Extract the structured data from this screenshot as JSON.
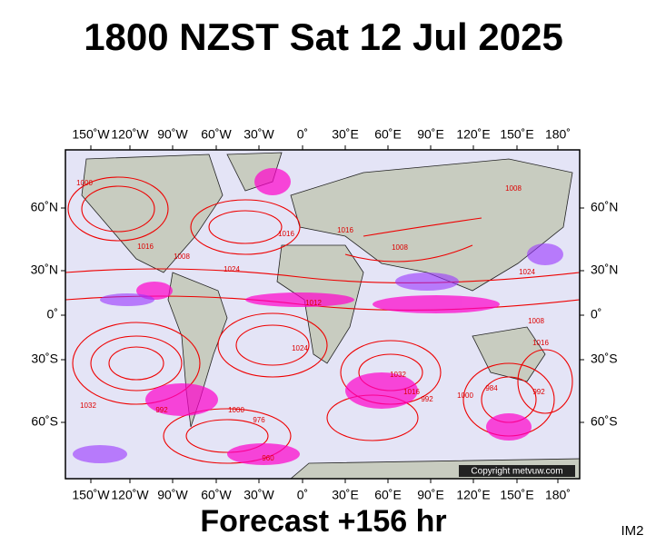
{
  "header": {
    "title": "1800 NZST Sat 12 Jul 2025"
  },
  "map": {
    "lon_labels": [
      "150˚W",
      "120˚W",
      "90˚W",
      "60˚W",
      "30˚W",
      "0˚",
      "30˚E",
      "60˚E",
      "90˚E",
      "120˚E",
      "150˚E",
      "180˚"
    ],
    "lat_labels": [
      "60˚N",
      "30˚N",
      "0˚",
      "30˚S",
      "60˚S"
    ],
    "isobar_labels": [
      1000,
      1016,
      1024,
      1008,
      1016,
      1008,
      1016,
      1024,
      1012,
      1024,
      1032,
      992,
      976,
      960,
      1000,
      1032,
      1016,
      992,
      1000,
      984,
      992,
      1008,
      1016,
      1008
    ],
    "copyright": "Copyright metvuw.com"
  },
  "footer": {
    "forecast": "Forecast +156 hr",
    "code": "IM2"
  }
}
